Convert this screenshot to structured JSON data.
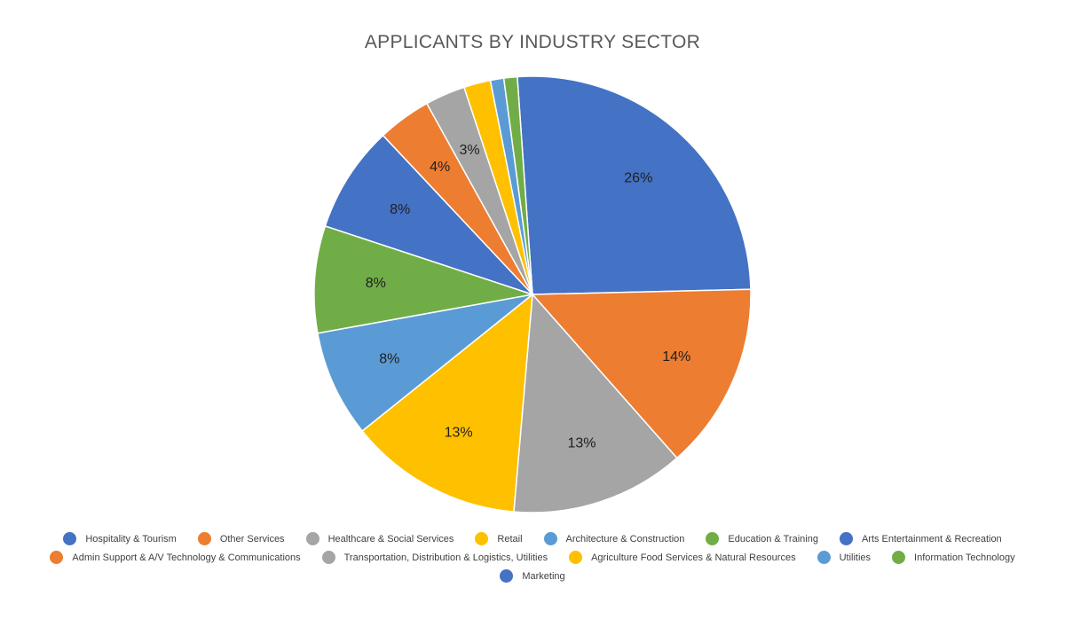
{
  "chart_data": {
    "type": "pie",
    "title": "APPLICANTS BY INDUSTRY SECTOR",
    "start_angle_deg": -4,
    "direction": "clockwise",
    "legend_position": "bottom",
    "slices": [
      {
        "name": "Hospitality & Tourism",
        "value": 26,
        "label": "26%",
        "color": "#4472C4"
      },
      {
        "name": "Other Services",
        "value": 14,
        "label": "14%",
        "color": "#ED7D31"
      },
      {
        "name": "Healthcare & Social Services",
        "value": 13,
        "label": "13%",
        "color": "#A5A5A5"
      },
      {
        "name": "Retail",
        "value": 13,
        "label": "13%",
        "color": "#FFC000"
      },
      {
        "name": "Architecture & Construction",
        "value": 8,
        "label": "8%",
        "color": "#5B9BD5"
      },
      {
        "name": "Education & Training",
        "value": 8,
        "label": "8%",
        "color": "#70AD47"
      },
      {
        "name": "Arts Entertainment & Recreation",
        "value": 8,
        "label": "8%",
        "color": "#4472C4"
      },
      {
        "name": "Admin Support & A/V Technology & Communications",
        "value": 4,
        "label": "4%",
        "color": "#ED7D31"
      },
      {
        "name": "Transportation, Distribution & Logistics, Utilities",
        "value": 3,
        "label": "3%",
        "color": "#A5A5A5"
      },
      {
        "name": "Agriculture Food Services & Natural Resources",
        "value": 2,
        "label": "",
        "color": "#FFC000"
      },
      {
        "name": "Utilities",
        "value": 1,
        "label": "",
        "color": "#5B9BD5"
      },
      {
        "name": "Information Technology",
        "value": 1,
        "label": "",
        "color": "#70AD47"
      },
      {
        "name": "Marketing",
        "value": 0,
        "label": "",
        "color": "#4472C4"
      }
    ]
  }
}
